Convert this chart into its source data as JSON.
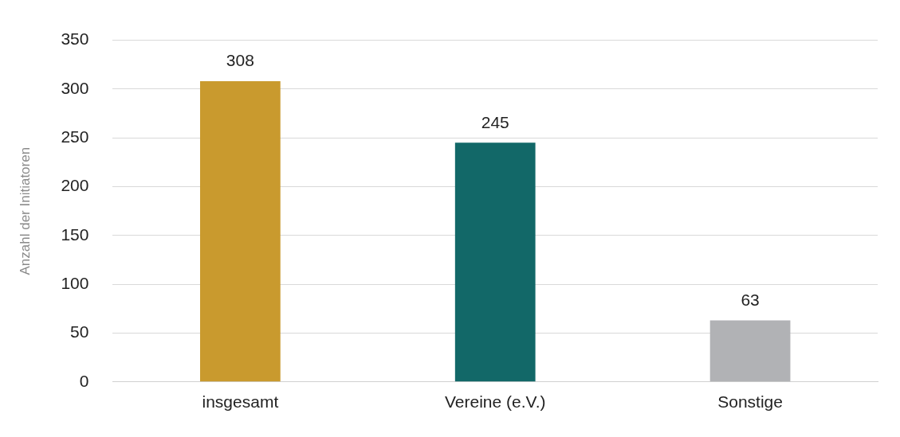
{
  "chart_data": {
    "type": "bar",
    "ylabel": "Anzahl der Initiatoren",
    "categories": [
      "insgesamt",
      "Vereine (e.V.)",
      "Sonstige"
    ],
    "values": [
      308,
      245,
      63
    ],
    "colors": [
      "#c99a2e",
      "#126868",
      "#b1b2b5"
    ],
    "ylim": [
      0,
      350
    ],
    "yticks": [
      0,
      50,
      100,
      150,
      200,
      250,
      300,
      350
    ],
    "grid": "y",
    "legend": false,
    "data_labels": true
  }
}
